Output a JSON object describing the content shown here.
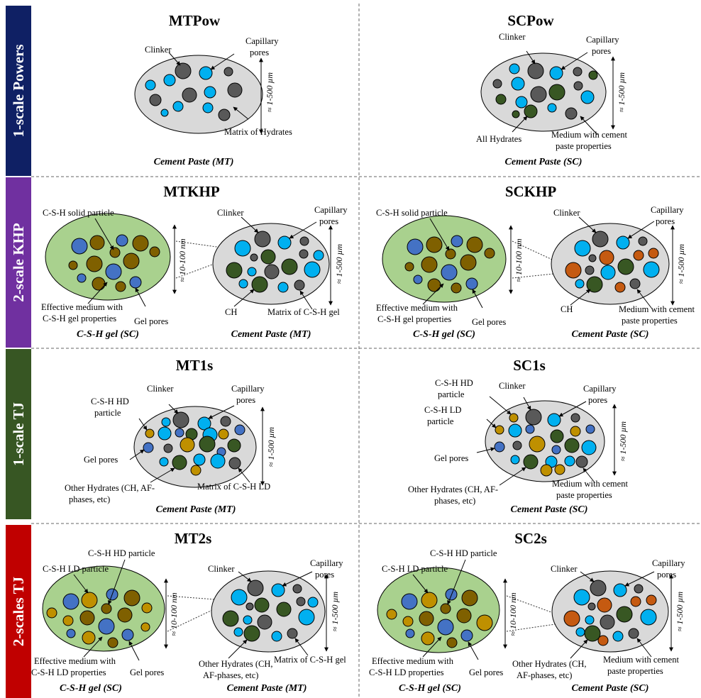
{
  "colors": {
    "row_powers": "#0f2064",
    "row_khp": "#7030a0",
    "row_1s": "#375623",
    "row_2s": "#c00000",
    "matrix": "#d9d9d9",
    "gel": "#a9d18e",
    "clinker": "#595959",
    "capillary_pore": "#00b0f0",
    "gel_pore": "#4472c4",
    "hydrate": "#385723",
    "hd_particle": "#bf9000",
    "ld_particle": "#7f6000",
    "ch_particle": "#c55a11"
  },
  "rows": {
    "powers": "1-scale Powers",
    "khp": "2-scale KHP",
    "tj1": "1-scale TJ",
    "tj2": "2-scales TJ"
  },
  "scales": {
    "paste": "≈ 1-500 µm",
    "gel": "≈ 10-100 nm"
  },
  "mtpow": {
    "title": "MTPow",
    "clinker": "Clinker",
    "capillary_1": "Capillary",
    "capillary_2": "pores",
    "matrix": "Matrix of Hydrates",
    "caption": "Cement Paste (MT)"
  },
  "scpow": {
    "title": "SCPow",
    "clinker": "Clinker",
    "capillary_1": "Capillary",
    "capillary_2": "pores",
    "hydrates": "All Hydrates",
    "medium_1": "Medium with cement",
    "medium_2": "paste properties",
    "caption": "Cement Paste (SC)"
  },
  "mtkhp": {
    "title": "MTKHP",
    "csh_solid": "C-S-H solid particle",
    "effective_1": "Effective medium with",
    "effective_2": "C-S-H gel properties",
    "gel_pores": "Gel pores",
    "gel_caption": "C-S-H gel (SC)",
    "clinker": "Clinker",
    "capillary_1": "Capillary",
    "capillary_2": "pores",
    "ch": "CH",
    "matrix": "Matrix of C-S-H gel",
    "caption": "Cement Paste (MT)"
  },
  "sckhp": {
    "title": "SCKHP",
    "csh_solid": "C-S-H solid particle",
    "effective_1": "Effective medium with",
    "effective_2": "C-S-H gel properties",
    "gel_pores": "Gel pores",
    "gel_caption": "C-S-H gel (SC)",
    "clinker": "Clinker",
    "capillary_1": "Capillary",
    "capillary_2": "pores",
    "ch": "CH",
    "medium_1": "Medium with cement",
    "medium_2": "paste properties",
    "caption": "Cement Paste (SC)"
  },
  "mt1s": {
    "title": "MT1s",
    "hd_1": "C-S-H HD",
    "hd_2": "particle",
    "clinker": "Clinker",
    "capillary_1": "Capillary",
    "capillary_2": "pores",
    "gel_pores": "Gel pores",
    "other_1": "Other Hydrates (CH, AF-",
    "other_2": "phases, etc)",
    "matrix": "Matrix of C-S-H LD",
    "caption": "Cement Paste (MT)"
  },
  "sc1s": {
    "title": "SC1s",
    "hd_1": "C-S-H HD",
    "hd_2": "particle",
    "ld_1": "C-S-H LD",
    "ld_2": "particle",
    "clinker": "Clinker",
    "capillary_1": "Capillary",
    "capillary_2": "pores",
    "gel_pores": "Gel pores",
    "other_1": "Other Hydrates (CH, AF-",
    "other_2": "phases, etc)",
    "medium_1": "Medium with cement",
    "medium_2": "paste properties",
    "caption": "Cement Paste (SC)"
  },
  "mt2s": {
    "title": "MT2s",
    "hd": "C-S-H HD particle",
    "ld": "C-S-H LD particle",
    "effective_1": "Effective medium with",
    "effective_2": "C-S-H LD properties",
    "gel_pores": "Gel pores",
    "gel_caption": "C-S-H gel (SC)",
    "clinker": "Clinker",
    "capillary_1": "Capillary",
    "capillary_2": "pores",
    "other_1": "Other Hydrates (CH,",
    "other_2": "AF-phases, etc)",
    "matrix": "Matrix of C-S-H gel",
    "caption": "Cement Paste (MT)"
  },
  "sc2s": {
    "title": "SC2s",
    "hd": "C-S-H HD particle",
    "ld": "C-S-H LD particle",
    "effective_1": "Effective medium with",
    "effective_2": "C-S-H LD properties",
    "gel_pores": "Gel pores",
    "gel_caption": "C-S-H gel (SC)",
    "clinker": "Clinker",
    "capillary_1": "Capillary",
    "capillary_2": "pores",
    "other_1": "Other Hydrates (CH,",
    "other_2": "AF-phases, etc)",
    "medium_1": "Medium with cement",
    "medium_2": "paste properties",
    "caption": "Cement Paste (SC)"
  }
}
